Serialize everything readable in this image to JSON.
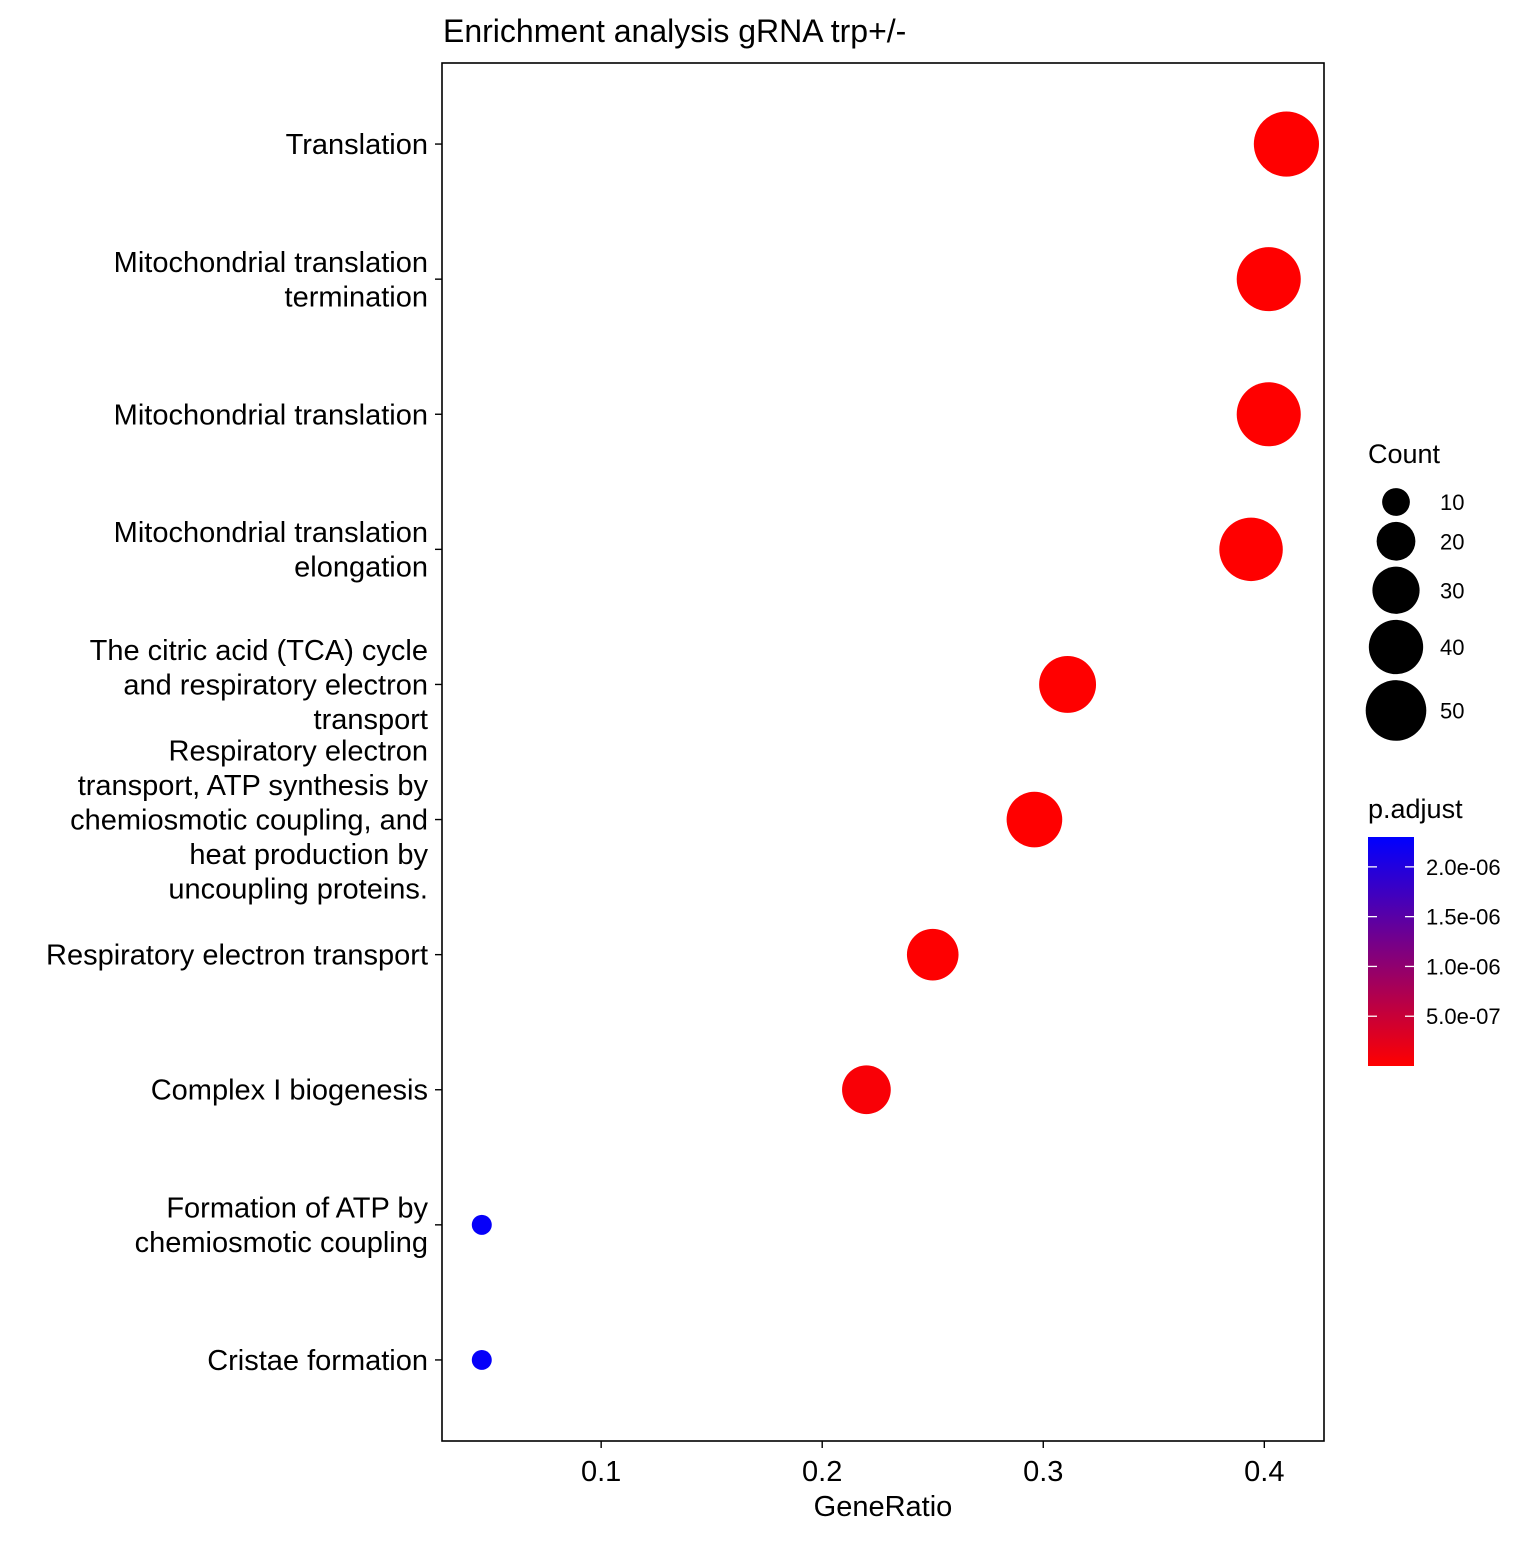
{
  "chart_data": {
    "type": "scatter",
    "title": "Enrichment analysis gRNA trp+/-",
    "xlabel": "GeneRatio",
    "ylabel": "",
    "xlim": [
      0.028,
      0.427
    ],
    "x_ticks": [
      0.1,
      0.2,
      0.3,
      0.4
    ],
    "x_tick_labels": [
      "0.1",
      "0.2",
      "0.3",
      "0.4"
    ],
    "grid": false,
    "legend_position": "right",
    "categories": [
      {
        "label_lines": [
          "Translation"
        ],
        "gene_ratio": 0.41,
        "count": 58,
        "p_adjust": 1e-10
      },
      {
        "label_lines": [
          "Mitochondrial translation",
          "termination"
        ],
        "gene_ratio": 0.402,
        "count": 56,
        "p_adjust": 1e-10
      },
      {
        "label_lines": [
          "Mitochondrial translation"
        ],
        "gene_ratio": 0.402,
        "count": 56,
        "p_adjust": 1e-10
      },
      {
        "label_lines": [
          "Mitochondrial translation",
          "elongation"
        ],
        "gene_ratio": 0.394,
        "count": 55,
        "p_adjust": 1e-10
      },
      {
        "label_lines": [
          "The citric acid (TCA) cycle",
          "and respiratory electron",
          "transport"
        ],
        "gene_ratio": 0.311,
        "count": 44,
        "p_adjust": 1e-09
      },
      {
        "label_lines": [
          "Respiratory electron",
          "transport, ATP synthesis by",
          "chemiosmotic coupling, and",
          "heat production by",
          "uncoupling proteins."
        ],
        "gene_ratio": 0.296,
        "count": 42,
        "p_adjust": 1e-09
      },
      {
        "label_lines": [
          "Respiratory electron transport"
        ],
        "gene_ratio": 0.25,
        "count": 36,
        "p_adjust": 1e-08
      },
      {
        "label_lines": [
          "Complex I biogenesis"
        ],
        "gene_ratio": 0.22,
        "count": 32,
        "p_adjust": 5e-08
      },
      {
        "label_lines": [
          "Formation of ATP by",
          "chemiosmotic coupling"
        ],
        "gene_ratio": 0.046,
        "count": 5,
        "p_adjust": 2.25e-06
      },
      {
        "label_lines": [
          "Cristae formation"
        ],
        "gene_ratio": 0.046,
        "count": 5,
        "p_adjust": 2.25e-06
      }
    ],
    "size_legend": {
      "title": "Count",
      "values": [
        10,
        20,
        30,
        40,
        50
      ],
      "labels": [
        "10",
        "20",
        "30",
        "40",
        "50"
      ]
    },
    "color_legend": {
      "title": "p.adjust",
      "range": [
        1e-10,
        2.3e-06
      ],
      "ticks": [
        5e-07,
        1e-06,
        1.5e-06,
        2e-06
      ],
      "tick_labels": [
        "5.0e-07",
        "1.0e-06",
        "1.5e-06",
        "2.0e-06"
      ],
      "low_color": "#FF0000",
      "high_color": "#0000FF"
    }
  }
}
